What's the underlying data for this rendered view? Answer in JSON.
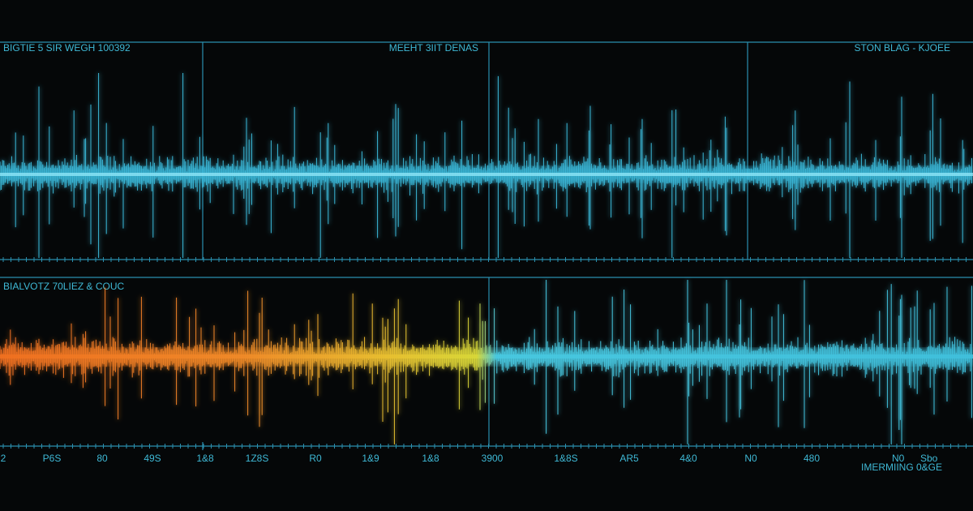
{
  "panels": [
    {
      "labels": [
        "BIGTIE 5 SIR WEGH 100392",
        "MEEHT 3IIT DENAS",
        "STON BLAG - KJOEE"
      ]
    },
    {
      "labels": [
        "BIALVOTZ 70LIEZ & COUC"
      ]
    }
  ],
  "axis": {
    "labels": [
      "2",
      "P6S",
      "80",
      "49S",
      "1&8",
      "1Z8S",
      "R0",
      "1&9",
      "1&8",
      "3900",
      "1&8S",
      "AR5",
      "4&0",
      "N0",
      "480",
      "N0",
      "Sbo"
    ]
  },
  "footnote": "IMERMIING 0&GE"
}
